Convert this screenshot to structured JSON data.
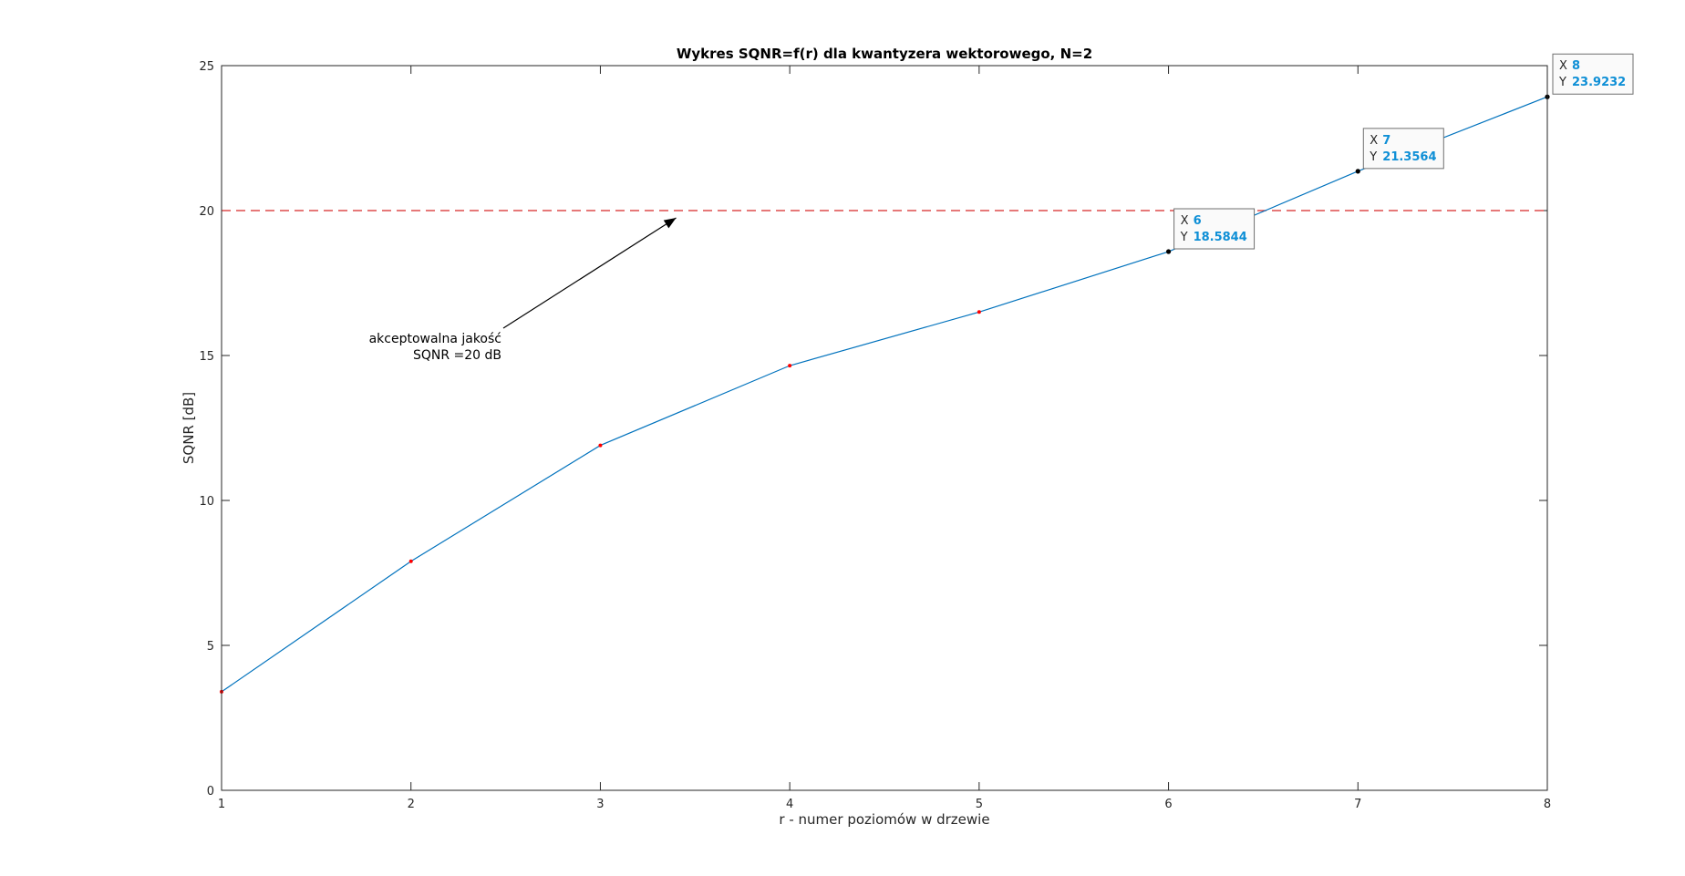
{
  "chart_data": {
    "type": "line",
    "title": "Wykres SQNR=f(r) dla kwantyzera wektorowego, N=2",
    "xlabel": "r - numer poziomów w drzewie",
    "ylabel": "SQNR [dB]",
    "xlim": [
      1,
      8
    ],
    "ylim": [
      0,
      25
    ],
    "xticks": [
      1,
      2,
      3,
      4,
      5,
      6,
      7,
      8
    ],
    "yticks": [
      0,
      5,
      10,
      15,
      20,
      25
    ],
    "grid": false,
    "series": [
      {
        "name": "SQNR",
        "color": "#0072bd",
        "marker_color": "#ff0000",
        "x": [
          1,
          2,
          3,
          4,
          5,
          6,
          7,
          8
        ],
        "y": [
          3.4,
          7.9,
          11.9,
          14.65,
          16.5,
          18.5844,
          21.3564,
          23.9232
        ]
      }
    ],
    "reference_line": {
      "y": 20,
      "style": "dashed",
      "color": "#d62728"
    },
    "annotation": {
      "lines": [
        "akceptowalna jakość",
        "SQNR =20 dB"
      ],
      "arrow_to": {
        "x": 3.4,
        "y": 19.75
      }
    },
    "datatips": [
      {
        "x_label": "X",
        "x_value": "6",
        "y_label": "Y",
        "y_value": "18.5844",
        "x": 6,
        "y": 18.5844
      },
      {
        "x_label": "X",
        "x_value": "7",
        "y_label": "Y",
        "y_value": "21.3564",
        "x": 7,
        "y": 21.3564
      },
      {
        "x_label": "X",
        "x_value": "8",
        "y_label": "Y",
        "y_value": "23.9232",
        "x": 8,
        "y": 23.9232
      }
    ]
  }
}
